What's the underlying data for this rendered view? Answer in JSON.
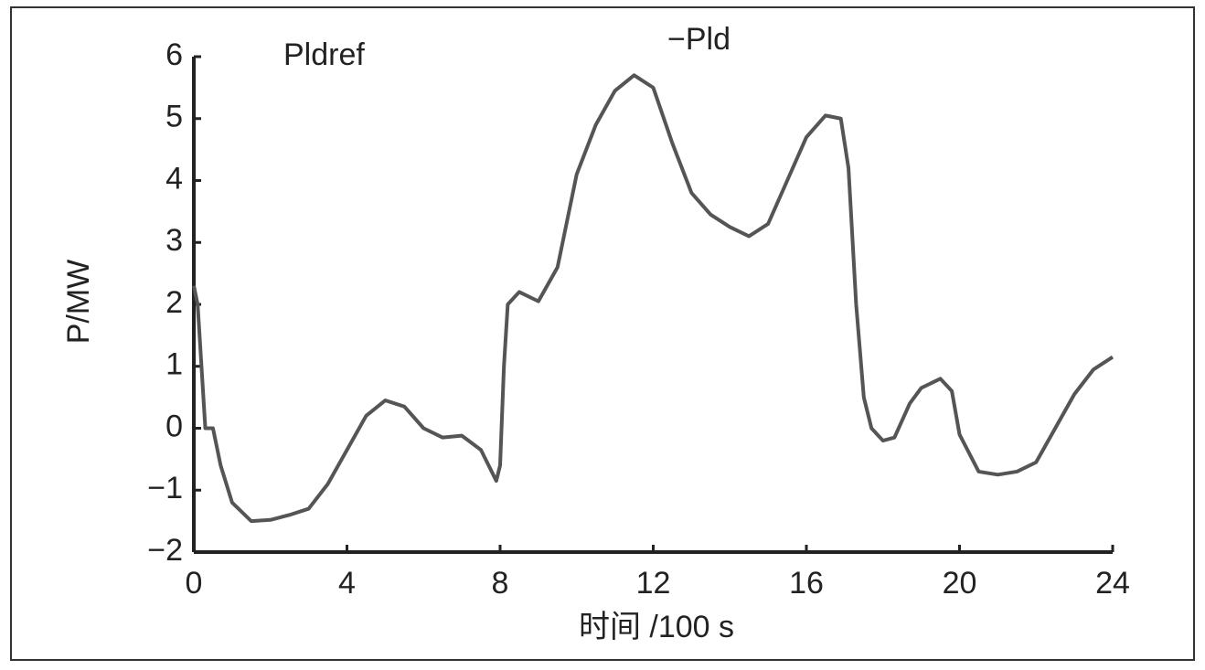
{
  "chart_data": {
    "type": "line",
    "annotations": [
      "Pldref",
      "−Pld"
    ],
    "xlabel": "时间 /100 s",
    "ylabel": "P/MW",
    "xlim": [
      0,
      24
    ],
    "xticks": [
      0,
      4,
      8,
      12,
      16,
      20,
      24
    ],
    "ylim": [
      -2,
      6
    ],
    "yticks": [
      {
        "value": -2,
        "label": "−2"
      },
      {
        "value": -1,
        "label": "−1"
      },
      0,
      1,
      2,
      3,
      4,
      5,
      6
    ],
    "series": [
      {
        "color": "#555555",
        "x": [
          0,
          0.1,
          0.2,
          0.3,
          0.5,
          0.7,
          1,
          1.5,
          2,
          2.5,
          3,
          3.5,
          4,
          4.5,
          5,
          5.5,
          6,
          6.5,
          7,
          7.5,
          7.9,
          8,
          8.1,
          8.2,
          8.5,
          9,
          9.5,
          10,
          10.5,
          11,
          11.5,
          12,
          12.5,
          13,
          13.5,
          14,
          14.5,
          15,
          15.5,
          16,
          16.5,
          16.9,
          17.1,
          17.3,
          17.5,
          17.7,
          18,
          18.3,
          18.7,
          19,
          19.5,
          19.8,
          20,
          20.5,
          21,
          21.5,
          22,
          22.5,
          23,
          23.5,
          24
        ],
        "values": [
          2.3,
          2.0,
          1.0,
          0.0,
          0.0,
          -0.6,
          -1.2,
          -1.5,
          -1.48,
          -1.4,
          -1.3,
          -0.9,
          -0.35,
          0.2,
          0.45,
          0.35,
          0.0,
          -0.15,
          -0.12,
          -0.35,
          -0.85,
          -0.6,
          1.0,
          2.0,
          2.2,
          2.05,
          2.6,
          4.1,
          4.9,
          5.45,
          5.7,
          5.5,
          4.6,
          3.8,
          3.45,
          3.25,
          3.1,
          3.3,
          4.0,
          4.7,
          5.05,
          5.0,
          4.2,
          2.0,
          0.5,
          0.0,
          -0.2,
          -0.15,
          0.4,
          0.65,
          0.8,
          0.6,
          -0.1,
          -0.7,
          -0.75,
          -0.7,
          -0.55,
          0.0,
          0.55,
          0.95,
          1.15
        ]
      }
    ]
  }
}
